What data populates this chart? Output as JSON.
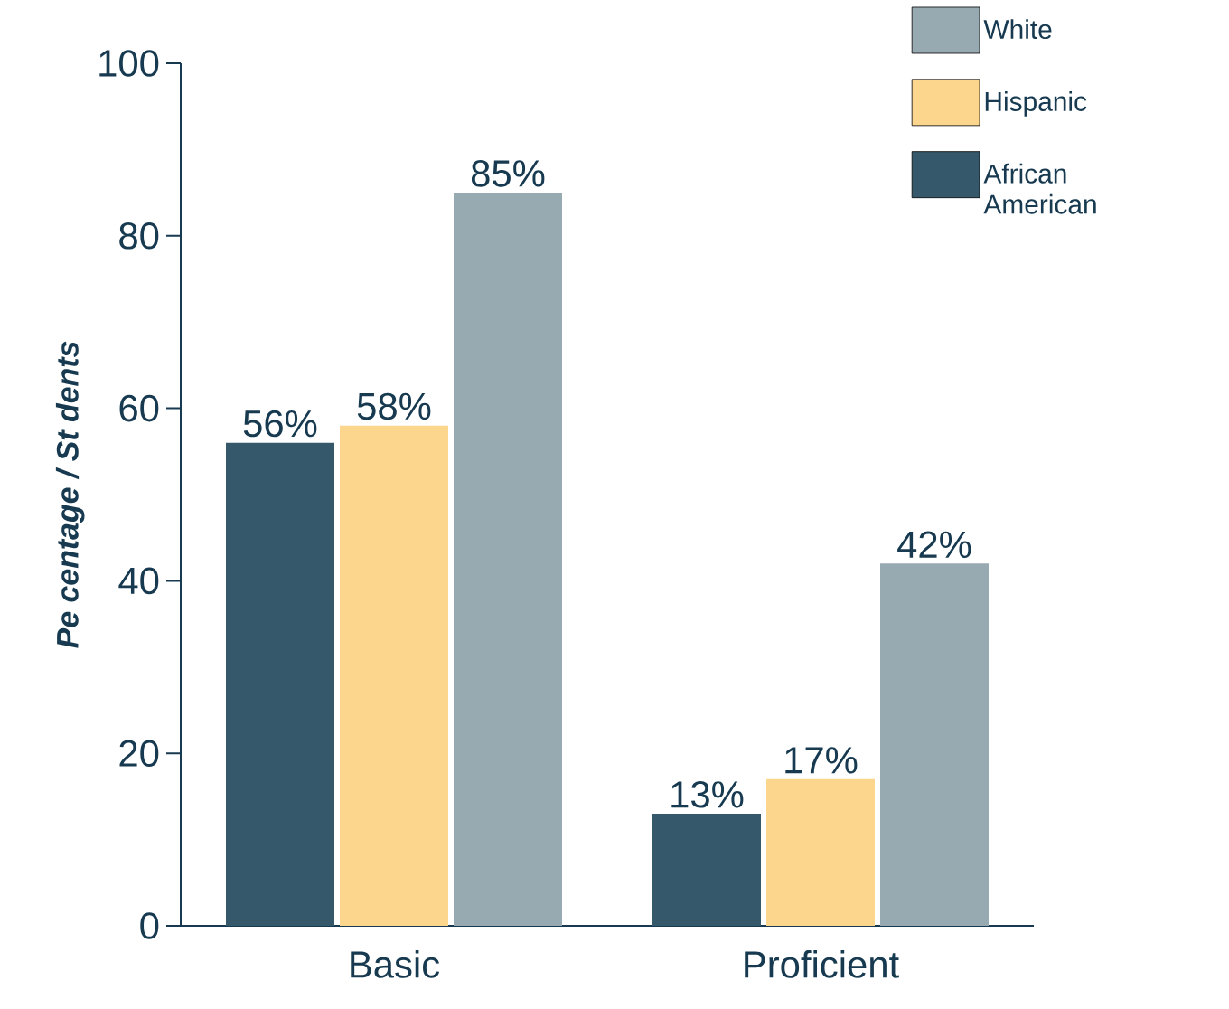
{
  "chart_data": {
    "type": "bar",
    "ylabel": "Pe centage / St dents",
    "categories": [
      "Basic",
      "Proficient"
    ],
    "series": [
      {
        "name": "African American",
        "color": "#35586a",
        "values": [
          56,
          13
        ],
        "value_labels": [
          "56%",
          "13%"
        ]
      },
      {
        "name": "Hispanic",
        "color": "#fdd68d",
        "values": [
          58,
          17
        ],
        "value_labels": [
          "58%",
          "17%"
        ]
      },
      {
        "name": "White",
        "color": "#97a9b1",
        "values": [
          85,
          42
        ],
        "value_labels": [
          "85%",
          "42%"
        ]
      }
    ],
    "ylim": [
      0,
      100
    ],
    "yticks": [
      0,
      20,
      40,
      60,
      80,
      100
    ],
    "grid": false,
    "legend": "top right"
  }
}
